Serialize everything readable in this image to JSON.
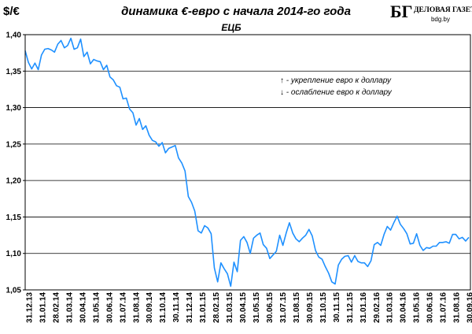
{
  "chart_data": {
    "type": "line",
    "title": "динамика €-евро с начала 2014-го года",
    "subtitle": "ЕЦБ",
    "ylabel": "$/€",
    "xlabel": "",
    "ylim": [
      1.05,
      1.4
    ],
    "yticks": [
      "1,05",
      "1,10",
      "1,15",
      "1,20",
      "1,25",
      "1,30",
      "1,35",
      "1,40"
    ],
    "ytick_values": [
      1.05,
      1.1,
      1.15,
      1.2,
      1.25,
      1.3,
      1.35,
      1.4
    ],
    "xticks": [
      "31.12.13",
      "31.01.14",
      "28.02.14",
      "31.03.14",
      "30.04.14",
      "31.05.14",
      "30.06.14",
      "31.07.14",
      "31.08.14",
      "30.09.14",
      "31.10.14",
      "30.11.14",
      "31.12.14",
      "31.01.15",
      "28.02.15",
      "31.03.15",
      "30.04.15",
      "31.05.15",
      "30.06.15",
      "31.07.15",
      "31.08.15",
      "30.09.15",
      "31.10.15",
      "30.11.15",
      "31.12.15",
      "31.01.16",
      "29.02.16",
      "31.03.16",
      "30.04.16",
      "31.05.16",
      "30.06.16",
      "31.07.16",
      "31.08.16",
      "30.09.16"
    ],
    "grid": "horizontal",
    "line_color": "#1e90ff",
    "annotations": [
      {
        "arrow": "↑",
        "text": " - укрепление евро к доллару"
      },
      {
        "arrow": "↓",
        "text": " - ослабление евро к доллару"
      }
    ],
    "series": [
      {
        "values": [
          1.378,
          1.362,
          1.353,
          1.361,
          1.352,
          1.372,
          1.38,
          1.381,
          1.379,
          1.376,
          1.387,
          1.392,
          1.382,
          1.385,
          1.395,
          1.38,
          1.382,
          1.394,
          1.37,
          1.376,
          1.36,
          1.366,
          1.364,
          1.363,
          1.352,
          1.358,
          1.342,
          1.338,
          1.33,
          1.328,
          1.312,
          1.313,
          1.298,
          1.293,
          1.276,
          1.285,
          1.27,
          1.275,
          1.262,
          1.255,
          1.253,
          1.247,
          1.252,
          1.238,
          1.244,
          1.246,
          1.248,
          1.231,
          1.224,
          1.213,
          1.178,
          1.17,
          1.158,
          1.131,
          1.128,
          1.138,
          1.135,
          1.127,
          1.08,
          1.061,
          1.087,
          1.079,
          1.072,
          1.055,
          1.088,
          1.075,
          1.118,
          1.123,
          1.115,
          1.1,
          1.121,
          1.125,
          1.128,
          1.112,
          1.107,
          1.093,
          1.098,
          1.103,
          1.125,
          1.111,
          1.128,
          1.142,
          1.128,
          1.12,
          1.116,
          1.121,
          1.125,
          1.133,
          1.124,
          1.104,
          1.095,
          1.092,
          1.082,
          1.073,
          1.061,
          1.058,
          1.084,
          1.092,
          1.096,
          1.097,
          1.088,
          1.097,
          1.089,
          1.087,
          1.087,
          1.082,
          1.09,
          1.112,
          1.115,
          1.111,
          1.126,
          1.137,
          1.132,
          1.142,
          1.151,
          1.14,
          1.134,
          1.127,
          1.113,
          1.114,
          1.127,
          1.111,
          1.104,
          1.108,
          1.107,
          1.11,
          1.11,
          1.115,
          1.115,
          1.116,
          1.114,
          1.126,
          1.126,
          1.12,
          1.122,
          1.117,
          1.122
        ]
      }
    ]
  },
  "logo": {
    "mark": "БГ",
    "name": "ДЕЛОВАЯ ГАЗЕТА",
    "site": "bdg.by"
  }
}
